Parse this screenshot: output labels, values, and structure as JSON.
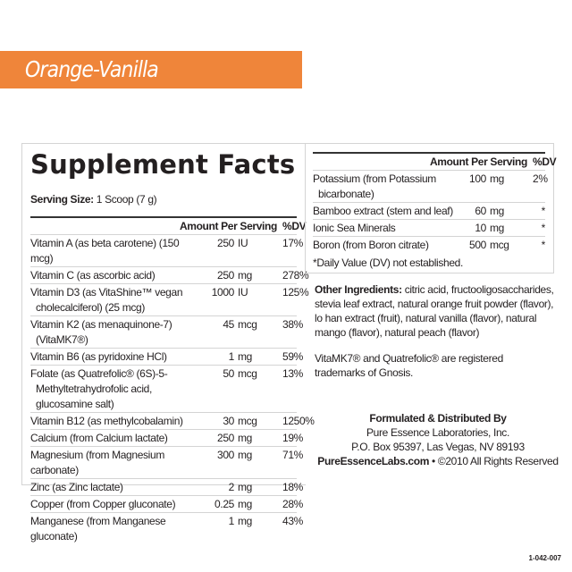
{
  "banner": {
    "flavor": "Orange-Vanilla",
    "color": "#ef853a"
  },
  "facts": {
    "title": "Supplement Facts",
    "serving_label": "Serving Size:",
    "serving_value": "1 Scoop (7 g)",
    "header": {
      "amount": "Amount Per Serving",
      "dv": "%DV"
    },
    "rows": [
      {
        "name": "Vitamin A (as beta carotene) (150 mcg)",
        "cont": "",
        "amount": "250",
        "unit": "IU",
        "dv": "17%"
      },
      {
        "name": "Vitamin C (as ascorbic acid)",
        "cont": "",
        "amount": "250",
        "unit": "mg",
        "dv": "278%"
      },
      {
        "name": "Vitamin D3 (as VitaShine™ vegan",
        "cont": "cholecalciferol) (25 mcg)",
        "amount": "1000",
        "unit": "IU",
        "dv": "125%"
      },
      {
        "name": "Vitamin K2 (as menaquinone-7)",
        "cont": "(VitaMK7®)",
        "amount": "45",
        "unit": "mcg",
        "dv": "38%"
      },
      {
        "name": "Vitamin B6 (as pyridoxine HCl)",
        "cont": "",
        "amount": "1",
        "unit": "mg",
        "dv": "59%"
      },
      {
        "name": "Folate (as Quatrefolic® (6S)-5-",
        "cont": "Methyltetrahydrofolic acid,\nglucosamine salt)",
        "amount": "50",
        "unit": "mcg",
        "dv": "13%"
      },
      {
        "name": "Vitamin B12 (as methylcobalamin)",
        "cont": "",
        "amount": "30",
        "unit": "mcg",
        "dv": "1250%"
      },
      {
        "name": "Calcium (from Calcium lactate)",
        "cont": "",
        "amount": "250",
        "unit": "mg",
        "dv": "19%"
      },
      {
        "name": "Magnesium (from Magnesium carbonate)",
        "cont": "",
        "amount": "300",
        "unit": "mg",
        "dv": "71%"
      },
      {
        "name": "Zinc (as Zinc lactate)",
        "cont": "",
        "amount": "2",
        "unit": "mg",
        "dv": "18%"
      },
      {
        "name": "Copper (from Copper gluconate)",
        "cont": "",
        "amount": "0.25",
        "unit": "mg",
        "dv": "28%"
      },
      {
        "name": "Manganese (from Manganese gluconate)",
        "cont": "",
        "amount": "1",
        "unit": "mg",
        "dv": "43%"
      }
    ],
    "rows2": [
      {
        "name": "Potassium (from Potassium",
        "cont": "bicarbonate)",
        "amount": "100",
        "unit": "mg",
        "dv": "2%"
      },
      {
        "name": "Bamboo extract (stem and leaf)",
        "cont": "",
        "amount": "60",
        "unit": "mg",
        "dv": "*"
      },
      {
        "name": "Ionic Sea Minerals",
        "cont": "",
        "amount": "10",
        "unit": "mg",
        "dv": "*"
      },
      {
        "name": "Boron (from Boron citrate)",
        "cont": "",
        "amount": "500",
        "unit": "mcg",
        "dv": "*"
      }
    ],
    "footnote": "*Daily Value (DV) not established."
  },
  "other": {
    "label": "Other Ingredients:",
    "text": "citric acid, fructooligosaccharides, stevia leaf extract, natural orange fruit powder (flavor), lo han extract (fruit), natural vanilla (flavor), natural mango (flavor), natural peach (flavor)"
  },
  "trademark": "VitaMK7® and Quatrefolic® are registered trademarks of Gnosis.",
  "distributor": {
    "heading": "Formulated & Distributed By",
    "name": "Pure Essence Laboratories, Inc.",
    "address": "P.O. Box 95397, Las Vegas, NV 89193",
    "website": "PureEssenceLabs.com",
    "rights": " • ©2010 All Rights Reserved"
  },
  "code": "1-042-007"
}
